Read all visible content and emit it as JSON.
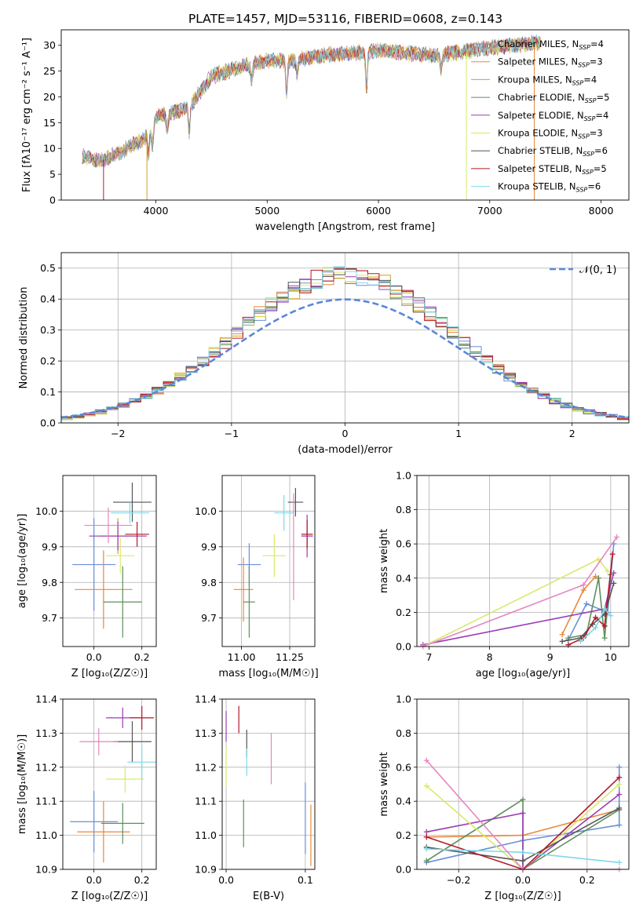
{
  "figure_title": "PLATE=1457, MJD=53116, FIBERID=0608, z=0.143",
  "models": [
    {
      "name": "Chabrier MILES",
      "nssp": "4",
      "color": "#6a8fd8"
    },
    {
      "name": "Salpeter MILES",
      "nssp": "3",
      "color": "#e8893a"
    },
    {
      "name": "Kroupa MILES",
      "nssp": "4",
      "color": "#d4a021"
    },
    {
      "name": "Chabrier ELODIE",
      "nssp": "5",
      "color": "#5e8f5e"
    },
    {
      "name": "Salpeter ELODIE",
      "nssp": "4",
      "color": "#9b3cb7"
    },
    {
      "name": "Kroupa ELODIE",
      "nssp": "3",
      "color": "#d8ea6a"
    },
    {
      "name": "Chabrier STELIB",
      "nssp": "6",
      "color": "#555555"
    },
    {
      "name": "Salpeter STELIB",
      "nssp": "5",
      "color": "#b3182a"
    },
    {
      "name": "Kroupa STELIB",
      "nssp": "6",
      "color": "#7fd8e8"
    }
  ],
  "chart_data": [
    {
      "type": "line",
      "id": "spectrum",
      "xlabel": "wavelength [Angstrom, rest frame]",
      "ylabel": "Flux [fλ10⁻¹⁷ erg cm⁻² s⁻¹ A⁻¹]",
      "xlim": [
        3150,
        8250
      ],
      "ylim": [
        0,
        33
      ],
      "xticks": [
        4000,
        5000,
        6000,
        7000,
        8000
      ],
      "yticks": [
        0,
        5,
        10,
        15,
        20,
        25,
        30
      ],
      "legend": "top-right",
      "continuum": {
        "x": [
          3350,
          3500,
          3700,
          3900,
          4000,
          4300,
          4500,
          4800,
          5000,
          5200,
          5500,
          6000,
          6500,
          7000,
          7400
        ],
        "y": [
          8.5,
          7.5,
          9.5,
          12,
          16,
          18,
          24,
          26,
          27,
          27,
          28,
          29,
          28,
          29.5,
          30.5
        ]
      },
      "absorption": [
        {
          "x": 3934,
          "depth": 5
        },
        {
          "x": 3969,
          "depth": 4
        },
        {
          "x": 4102,
          "depth": 3
        },
        {
          "x": 4300,
          "depth": 5
        },
        {
          "x": 4861,
          "depth": 3
        },
        {
          "x": 5175,
          "depth": 6
        },
        {
          "x": 5270,
          "depth": 3
        },
        {
          "x": 5893,
          "depth": 7
        },
        {
          "x": 6563,
          "depth": 3
        }
      ],
      "drop_lines": [
        {
          "model": 7,
          "x": 3530
        },
        {
          "model": 2,
          "x": 3920
        },
        {
          "model": 5,
          "x": 6790
        },
        {
          "model": 1,
          "x": 7400
        }
      ]
    },
    {
      "type": "bar",
      "id": "residual-histogram",
      "xlabel": "(data-model)/error",
      "ylabel": "Normed distribution",
      "xlim": [
        -2.5,
        2.5
      ],
      "ylim": [
        0,
        0.55
      ],
      "xticks": [
        -2,
        -1,
        0,
        1,
        2
      ],
      "yticks": [
        0,
        0.1,
        0.2,
        0.3,
        0.4,
        0.5
      ],
      "reference_curve": "𝒩(0, 1)",
      "bin_width": 0.1,
      "legend": "top-right"
    },
    {
      "type": "scatter",
      "id": "age-vs-z",
      "xlabel": "Z [log₁₀(Z/Z☉)]",
      "ylabel": "age [log₁₀(age/yr)]",
      "xlim": [
        -0.13,
        0.26
      ],
      "ylim": [
        9.62,
        10.1
      ],
      "xticks": [
        0.0,
        0.2
      ],
      "yticks": [
        9.7,
        9.8,
        9.9,
        10.0
      ],
      "points": [
        {
          "x": 0.0,
          "xerr": 0.09,
          "y": 9.85,
          "yerr": 0.13
        },
        {
          "x": 0.04,
          "xerr": 0.12,
          "y": 9.78,
          "yerr": 0.11
        },
        {
          "x": 0.1,
          "xerr": 0.08,
          "y": 9.93,
          "yerr": 0.05
        },
        {
          "x": 0.12,
          "xerr": 0.08,
          "y": 9.745,
          "yerr": 0.1
        },
        {
          "x": 0.1,
          "xerr": 0.12,
          "y": 9.93,
          "yerr": 0.04
        },
        {
          "x": 0.11,
          "xerr": 0.06,
          "y": 9.875,
          "yerr": 0.05
        },
        {
          "x": 0.16,
          "xerr": 0.08,
          "y": 10.025,
          "yerr": 0.055
        },
        {
          "x": 0.18,
          "xerr": 0.05,
          "y": 9.935,
          "yerr": 0.035
        },
        {
          "x": 0.15,
          "xerr": 0.08,
          "y": 9.995,
          "yerr": 0.03
        }
      ],
      "point_colors": [
        0,
        1,
        2,
        3,
        4,
        5,
        6,
        7,
        8
      ],
      "extra": [
        {
          "x": 0.06,
          "xerr": 0.1,
          "y": 9.96,
          "yerr": 0.05,
          "color": "#e586c0"
        }
      ]
    },
    {
      "type": "scatter",
      "id": "age-vs-mass",
      "xlabel": "mass [log₁₀(M/M☉)]",
      "ylabel": "",
      "xlim": [
        10.9,
        11.38
      ],
      "ylim": [
        9.62,
        10.1
      ],
      "xticks": [
        11.0,
        11.25
      ],
      "yticks": [
        9.7,
        9.8,
        9.9,
        10.0
      ],
      "points": [
        {
          "x": 11.04,
          "xerr": 0.06,
          "y": 9.85,
          "yerr": 0.06
        },
        {
          "x": 11.01,
          "xerr": 0.05,
          "y": 9.78,
          "yerr": 0.09
        },
        {
          "x": 11.04,
          "xerr": 0.03,
          "y": 9.745,
          "yerr": 0.1
        },
        {
          "x": 11.34,
          "xerr": 0.03,
          "y": 9.93,
          "yerr": 0.06
        },
        {
          "x": 11.17,
          "xerr": 0.06,
          "y": 9.875,
          "yerr": 0.06
        },
        {
          "x": 11.28,
          "xerr": 0.04,
          "y": 10.025,
          "yerr": 0.04
        },
        {
          "x": 11.34,
          "xerr": 0.03,
          "y": 9.935,
          "yerr": 0.04
        },
        {
          "x": 11.22,
          "xerr": 0.05,
          "y": 9.995,
          "yerr": 0.05
        }
      ],
      "point_colors": [
        0,
        1,
        3,
        4,
        5,
        6,
        7,
        8
      ],
      "extra": [
        {
          "x": 11.27,
          "xerr": 0.0,
          "y": 9.9,
          "yerr": 0.15,
          "color": "#e586c0"
        }
      ]
    },
    {
      "type": "line",
      "id": "weight-vs-age",
      "xlabel": "age [log₁₀(age/yr)]",
      "ylabel": "mass weight",
      "xlim": [
        6.8,
        10.3
      ],
      "ylim": [
        0,
        1
      ],
      "xticks": [
        7,
        8,
        9,
        10
      ],
      "yticks": [
        0.0,
        0.2,
        0.4,
        0.6,
        0.8,
        1.0
      ],
      "series": [
        {
          "color": 0,
          "x": [
            9.3,
            9.6,
            9.95,
            10.05
          ],
          "y": [
            0.04,
            0.25,
            0.2,
            0.6
          ]
        },
        {
          "color": 1,
          "x": [
            9.2,
            9.55,
            9.75
          ],
          "y": [
            0.07,
            0.33,
            0.41
          ]
        },
        {
          "color": 3,
          "x": [
            9.3,
            9.6,
            9.8,
            9.9,
            10.0
          ],
          "y": [
            0.05,
            0.07,
            0.4,
            0.05,
            0.42
          ]
        },
        {
          "color": 4,
          "x": [
            6.9,
            9.9,
            10.05
          ],
          "y": [
            0.01,
            0.22,
            0.43
          ]
        },
        {
          "color": 5,
          "x": [
            6.9,
            9.8,
            9.95
          ],
          "y": [
            0.0,
            0.51,
            0.44
          ]
        },
        {
          "color": 6,
          "x": [
            9.2,
            9.5,
            9.7,
            9.9,
            10.05
          ],
          "y": [
            0.03,
            0.05,
            0.13,
            0.19,
            0.37
          ]
        },
        {
          "color": 7,
          "x": [
            9.3,
            9.55,
            9.75,
            9.9,
            10.03
          ],
          "y": [
            0.01,
            0.05,
            0.17,
            0.12,
            0.54
          ]
        },
        {
          "color": 8,
          "x": [
            9.5,
            9.75,
            9.9,
            10.0
          ],
          "y": [
            0.03,
            0.11,
            0.22,
            0.18
          ]
        },
        {
          "color": "#e586c0",
          "x": [
            6.9,
            9.55,
            10.1
          ],
          "y": [
            0.0,
            0.36,
            0.64
          ]
        }
      ]
    },
    {
      "type": "scatter",
      "id": "mass-vs-z",
      "xlabel": "Z [log₁₀(Z/Z☉)]",
      "ylabel": "mass [log₁₀(M/M☉)]",
      "xlim": [
        -0.13,
        0.26
      ],
      "ylim": [
        10.9,
        11.4
      ],
      "xticks": [
        0.0,
        0.2
      ],
      "yticks": [
        10.9,
        11.0,
        11.1,
        11.2,
        11.3,
        11.4
      ],
      "points": [
        {
          "x": 0.0,
          "xerr": 0.1,
          "y": 11.04,
          "yerr": 0.09
        },
        {
          "x": 0.04,
          "xerr": 0.11,
          "y": 11.01,
          "yerr": 0.09
        },
        {
          "x": 0.12,
          "xerr": 0.09,
          "y": 11.035,
          "yerr": 0.06
        },
        {
          "x": 0.12,
          "xerr": 0.07,
          "y": 11.345,
          "yerr": 0.03
        },
        {
          "x": 0.13,
          "xerr": 0.08,
          "y": 11.165,
          "yerr": 0.04
        },
        {
          "x": 0.16,
          "xerr": 0.08,
          "y": 11.275,
          "yerr": 0.06
        },
        {
          "x": 0.2,
          "xerr": 0.05,
          "y": 11.345,
          "yerr": 0.035
        },
        {
          "x": 0.2,
          "xerr": 0.06,
          "y": 11.215,
          "yerr": 0.05
        }
      ],
      "point_colors": [
        0,
        1,
        3,
        4,
        5,
        6,
        7,
        8
      ],
      "extra": [
        {
          "x": 0.02,
          "xerr": 0.08,
          "y": 11.275,
          "yerr": 0.04,
          "color": "#e586c0"
        }
      ]
    },
    {
      "type": "scatter",
      "id": "mass-vs-ebv",
      "xlabel": "E(B-V)",
      "ylabel": "",
      "xlim": [
        -0.005,
        0.112
      ],
      "ylim": [
        10.9,
        11.4
      ],
      "xticks": [
        0.0,
        0.1
      ],
      "yticks": [
        10.9,
        11.0,
        11.1,
        11.2,
        11.3,
        11.4
      ],
      "points": [
        {
          "x": 0.1,
          "xerr": 0.0,
          "y": 11.05,
          "yerr": 0.105
        },
        {
          "x": 0.107,
          "xerr": 0.0,
          "y": 11.0,
          "yerr": 0.09
        },
        {
          "x": 0.022,
          "xerr": 0.0,
          "y": 11.035,
          "yerr": 0.07
        },
        {
          "x": 0.0,
          "xerr": 0.0,
          "y": 11.32,
          "yerr": 0.045
        },
        {
          "x": 0.0,
          "xerr": 0.0,
          "y": 11.2,
          "yerr": 0.06
        },
        {
          "x": 0.026,
          "xerr": 0.0,
          "y": 11.27,
          "yerr": 0.04
        },
        {
          "x": 0.016,
          "xerr": 0.0,
          "y": 11.34,
          "yerr": 0.04
        },
        {
          "x": 0.026,
          "xerr": 0.0,
          "y": 11.215,
          "yerr": 0.04
        }
      ],
      "point_colors": [
        0,
        1,
        3,
        4,
        5,
        6,
        7,
        8
      ],
      "extra": [
        {
          "x": 0.057,
          "xerr": 0.0,
          "y": 11.225,
          "yerr": 0.075,
          "color": "#e586c0"
        }
      ]
    },
    {
      "type": "line",
      "id": "weight-vs-z",
      "xlabel": "Z [log₁₀(Z/Z☉)]",
      "ylabel": "mass weight",
      "xlim": [
        -0.33,
        0.33
      ],
      "ylim": [
        0,
        1
      ],
      "xticks": [
        -0.2,
        0.0,
        0.2
      ],
      "yticks": [
        0.0,
        0.2,
        0.4,
        0.6,
        0.8,
        1.0
      ],
      "series": [
        {
          "color": 0,
          "x": [
            -0.3,
            0.0,
            0.3,
            0.3
          ],
          "y": [
            0.04,
            0.17,
            0.26,
            0.6
          ]
        },
        {
          "color": 1,
          "x": [
            -0.3,
            0.0,
            0.3
          ],
          "y": [
            0.19,
            0.2,
            0.35
          ]
        },
        {
          "color": 3,
          "x": [
            -0.3,
            0.0,
            0.0,
            0.3
          ],
          "y": [
            0.05,
            0.41,
            0.0,
            0.35
          ]
        },
        {
          "color": 4,
          "x": [
            -0.3,
            0.0,
            0.0,
            0.3
          ],
          "y": [
            0.22,
            0.33,
            0.0,
            0.44
          ]
        },
        {
          "color": 5,
          "x": [
            -0.3,
            0.0,
            0.3
          ],
          "y": [
            0.49,
            0.0,
            0.5
          ]
        },
        {
          "color": 6,
          "x": [
            -0.3,
            0.0,
            0.3
          ],
          "y": [
            0.13,
            0.05,
            0.36
          ]
        },
        {
          "color": 7,
          "x": [
            -0.3,
            0.0,
            0.3
          ],
          "y": [
            0.19,
            0.0,
            0.54
          ]
        },
        {
          "color": 8,
          "x": [
            -0.3,
            0.0,
            0.3
          ],
          "y": [
            0.12,
            0.1,
            0.04
          ]
        },
        {
          "color": "#e586c0",
          "x": [
            -0.3,
            0.0,
            0.3
          ],
          "y": [
            0.64,
            0.0,
            0.0
          ]
        }
      ]
    }
  ]
}
